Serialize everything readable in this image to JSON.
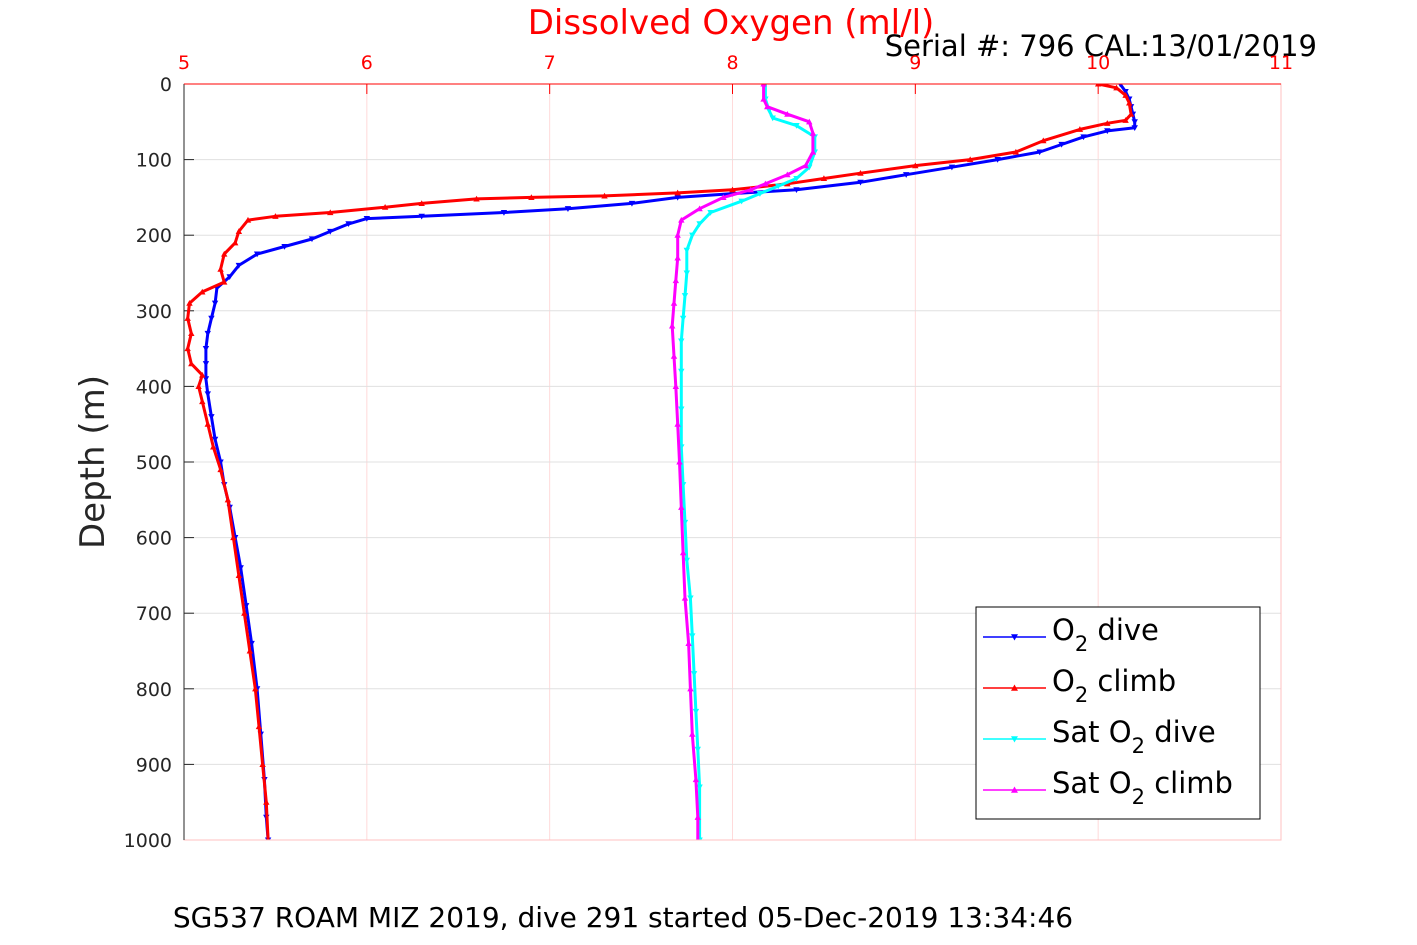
{
  "chart_data": {
    "type": "scatter",
    "title": "Dissolved Oxygen (ml/l)",
    "subtitle": "Serial #: 796  CAL:13/01/2019",
    "ylabel": "Depth (m)",
    "footer": "SG537 ROAM MIZ 2019, dive 291 started 05-Dec-2019 13:34:46",
    "xlim": [
      5,
      11
    ],
    "ylim": [
      0,
      1000
    ],
    "y_reversed": true,
    "x_axis_location": "top",
    "grid": true,
    "x_ticks": [
      "5",
      "6",
      "7",
      "8",
      "9",
      "10",
      "11"
    ],
    "y_ticks": [
      "0",
      "100",
      "200",
      "300",
      "400",
      "500",
      "600",
      "700",
      "800",
      "900",
      "1000"
    ],
    "legend_position": "bottom-right",
    "series": [
      {
        "name": "dive",
        "legend_prefix": "O",
        "legend_sub": "2",
        "legend_suffix": " dive",
        "color": "#0000ff",
        "marker": "triangle-down",
        "points": [
          [
            10.12,
            0
          ],
          [
            10.15,
            10
          ],
          [
            10.17,
            20
          ],
          [
            10.18,
            30
          ],
          [
            10.19,
            40
          ],
          [
            10.2,
            50
          ],
          [
            10.2,
            58
          ],
          [
            10.05,
            62
          ],
          [
            9.92,
            70
          ],
          [
            9.8,
            80
          ],
          [
            9.68,
            90
          ],
          [
            9.45,
            100
          ],
          [
            9.2,
            110
          ],
          [
            8.95,
            120
          ],
          [
            8.7,
            130
          ],
          [
            8.35,
            140
          ],
          [
            8.0,
            145
          ],
          [
            7.7,
            150
          ],
          [
            7.45,
            158
          ],
          [
            7.1,
            165
          ],
          [
            6.75,
            170
          ],
          [
            6.3,
            175
          ],
          [
            6.0,
            178
          ],
          [
            5.9,
            185
          ],
          [
            5.8,
            195
          ],
          [
            5.7,
            205
          ],
          [
            5.55,
            215
          ],
          [
            5.4,
            225
          ],
          [
            5.3,
            240
          ],
          [
            5.25,
            255
          ],
          [
            5.18,
            270
          ],
          [
            5.17,
            290
          ],
          [
            5.15,
            310
          ],
          [
            5.13,
            330
          ],
          [
            5.12,
            350
          ],
          [
            5.12,
            370
          ],
          [
            5.12,
            390
          ],
          [
            5.13,
            410
          ],
          [
            5.15,
            440
          ],
          [
            5.17,
            470
          ],
          [
            5.2,
            500
          ],
          [
            5.22,
            530
          ],
          [
            5.25,
            560
          ],
          [
            5.28,
            600
          ],
          [
            5.31,
            640
          ],
          [
            5.34,
            690
          ],
          [
            5.37,
            740
          ],
          [
            5.4,
            800
          ],
          [
            5.42,
            860
          ],
          [
            5.44,
            920
          ],
          [
            5.45,
            970
          ],
          [
            5.46,
            1000
          ]
        ]
      },
      {
        "name": "climb",
        "legend_prefix": "O",
        "legend_sub": "2",
        "legend_suffix": " climb",
        "color": "#ff0000",
        "marker": "triangle-up",
        "points": [
          [
            10.0,
            0
          ],
          [
            10.1,
            5
          ],
          [
            10.15,
            15
          ],
          [
            10.17,
            25
          ],
          [
            10.18,
            40
          ],
          [
            10.15,
            48
          ],
          [
            10.05,
            52
          ],
          [
            9.9,
            60
          ],
          [
            9.7,
            75
          ],
          [
            9.55,
            90
          ],
          [
            9.3,
            100
          ],
          [
            9.0,
            108
          ],
          [
            8.7,
            118
          ],
          [
            8.5,
            125
          ],
          [
            8.3,
            132
          ],
          [
            8.0,
            140
          ],
          [
            7.7,
            144
          ],
          [
            7.3,
            148
          ],
          [
            6.9,
            150
          ],
          [
            6.6,
            152
          ],
          [
            6.3,
            158
          ],
          [
            6.1,
            163
          ],
          [
            5.8,
            170
          ],
          [
            5.5,
            175
          ],
          [
            5.35,
            180
          ],
          [
            5.3,
            195
          ],
          [
            5.28,
            210
          ],
          [
            5.22,
            225
          ],
          [
            5.2,
            245
          ],
          [
            5.22,
            262
          ],
          [
            5.1,
            275
          ],
          [
            5.03,
            290
          ],
          [
            5.02,
            310
          ],
          [
            5.04,
            330
          ],
          [
            5.02,
            350
          ],
          [
            5.04,
            370
          ],
          [
            5.1,
            385
          ],
          [
            5.08,
            400
          ],
          [
            5.1,
            420
          ],
          [
            5.13,
            450
          ],
          [
            5.16,
            480
          ],
          [
            5.2,
            510
          ],
          [
            5.24,
            550
          ],
          [
            5.27,
            600
          ],
          [
            5.3,
            650
          ],
          [
            5.33,
            700
          ],
          [
            5.36,
            750
          ],
          [
            5.39,
            800
          ],
          [
            5.41,
            850
          ],
          [
            5.43,
            900
          ],
          [
            5.45,
            950
          ],
          [
            5.46,
            1000
          ]
        ]
      },
      {
        "name": "Sat dive",
        "legend_prefix": "Sat O",
        "legend_sub": "2",
        "legend_suffix": " dive",
        "color": "#00ffff",
        "marker": "triangle-down",
        "points": [
          [
            8.18,
            0
          ],
          [
            8.18,
            20
          ],
          [
            8.2,
            35
          ],
          [
            8.22,
            45
          ],
          [
            8.35,
            55
          ],
          [
            8.45,
            70
          ],
          [
            8.45,
            90
          ],
          [
            8.42,
            110
          ],
          [
            8.35,
            125
          ],
          [
            8.25,
            135
          ],
          [
            8.15,
            145
          ],
          [
            8.05,
            155
          ],
          [
            7.88,
            170
          ],
          [
            7.82,
            185
          ],
          [
            7.78,
            200
          ],
          [
            7.75,
            220
          ],
          [
            7.75,
            250
          ],
          [
            7.74,
            280
          ],
          [
            7.73,
            310
          ],
          [
            7.72,
            340
          ],
          [
            7.72,
            380
          ],
          [
            7.72,
            430
          ],
          [
            7.72,
            480
          ],
          [
            7.73,
            530
          ],
          [
            7.74,
            580
          ],
          [
            7.75,
            630
          ],
          [
            7.77,
            680
          ],
          [
            7.78,
            730
          ],
          [
            7.79,
            780
          ],
          [
            7.8,
            830
          ],
          [
            7.81,
            880
          ],
          [
            7.82,
            930
          ],
          [
            7.82,
            1000
          ]
        ]
      },
      {
        "name": "Sat climb",
        "legend_prefix": "Sat O",
        "legend_sub": "2",
        "legend_suffix": " climb",
        "color": "#ff00ff",
        "marker": "triangle-up",
        "points": [
          [
            8.17,
            0
          ],
          [
            8.17,
            20
          ],
          [
            8.19,
            30
          ],
          [
            8.3,
            40
          ],
          [
            8.42,
            50
          ],
          [
            8.44,
            65
          ],
          [
            8.44,
            90
          ],
          [
            8.4,
            108
          ],
          [
            8.3,
            120
          ],
          [
            8.18,
            132
          ],
          [
            8.1,
            140
          ],
          [
            7.95,
            150
          ],
          [
            7.82,
            165
          ],
          [
            7.72,
            180
          ],
          [
            7.7,
            200
          ],
          [
            7.7,
            230
          ],
          [
            7.69,
            260
          ],
          [
            7.68,
            290
          ],
          [
            7.67,
            320
          ],
          [
            7.68,
            360
          ],
          [
            7.69,
            400
          ],
          [
            7.7,
            450
          ],
          [
            7.71,
            500
          ],
          [
            7.72,
            560
          ],
          [
            7.73,
            620
          ],
          [
            7.74,
            680
          ],
          [
            7.76,
            740
          ],
          [
            7.77,
            800
          ],
          [
            7.78,
            860
          ],
          [
            7.8,
            920
          ],
          [
            7.81,
            970
          ],
          [
            7.81,
            1000
          ]
        ]
      }
    ]
  }
}
